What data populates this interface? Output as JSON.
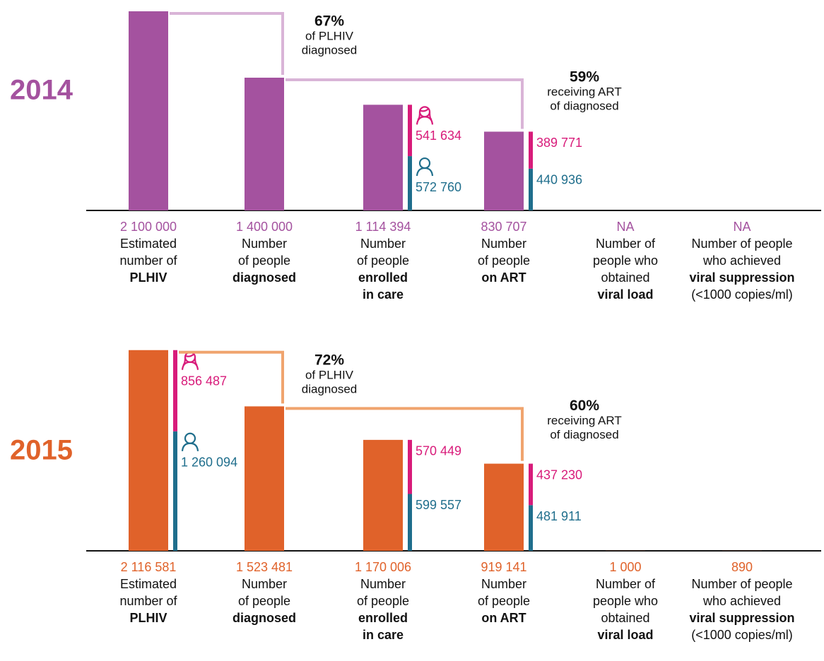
{
  "chart_data": [
    {
      "type": "bar",
      "title": "2014",
      "color": "#a4529f",
      "annotation_color": "#d9b4d7",
      "ylim": [
        0,
        2100000
      ],
      "categories": [
        {
          "lines": [
            "Estimated",
            "number of",
            "PLHIV"
          ],
          "bold": [
            2
          ]
        },
        {
          "lines": [
            "Number",
            "of people",
            "diagnosed"
          ],
          "bold": [
            2
          ]
        },
        {
          "lines": [
            "Number",
            "of people",
            "enrolled",
            "in care"
          ],
          "bold": [
            2,
            3
          ]
        },
        {
          "lines": [
            "Number",
            "of people",
            "on ART"
          ],
          "bold": [
            2
          ]
        },
        {
          "lines": [
            "Number of",
            "people who",
            "obtained",
            "viral load"
          ],
          "bold": [
            3
          ]
        },
        {
          "lines": [
            "Number of people",
            "who achieved",
            "viral suppression",
            "(<1000 copies/ml)"
          ],
          "bold": [
            2
          ]
        }
      ],
      "values": [
        2100000,
        1400000,
        1114394,
        830707,
        null,
        null
      ],
      "value_labels": [
        "2 100 000",
        "1 400 000",
        "1 114 394",
        "830 707",
        "NA",
        "NA"
      ],
      "series": [
        {
          "color": "#d81b7a",
          "values": [
            null,
            null,
            541634,
            389771,
            null,
            null
          ],
          "value_labels": [
            null,
            null,
            "541 634",
            "389 771",
            null,
            null
          ]
        },
        {
          "color": "#1f6e8c",
          "values": [
            null,
            null,
            572760,
            440936,
            null,
            null
          ],
          "value_labels": [
            null,
            null,
            "572 760",
            "440 936",
            null,
            null
          ]
        }
      ],
      "annotations": [
        {
          "label": "67%",
          "lines": [
            "of PLHIV",
            "diagnosed"
          ]
        },
        {
          "label": "59%",
          "lines": [
            "receiving ART",
            "of diagnosed"
          ]
        }
      ]
    },
    {
      "type": "bar",
      "title": "2015",
      "color": "#e0622a",
      "annotation_color": "#f0a46e",
      "ylim": [
        0,
        2100000
      ],
      "categories": [
        {
          "lines": [
            "Estimated",
            "number of",
            "PLHIV"
          ],
          "bold": [
            2
          ]
        },
        {
          "lines": [
            "Number",
            "of people",
            "diagnosed"
          ],
          "bold": [
            2
          ]
        },
        {
          "lines": [
            "Number",
            "of people",
            "enrolled",
            "in care"
          ],
          "bold": [
            2,
            3
          ]
        },
        {
          "lines": [
            "Number",
            "of people",
            "on ART"
          ],
          "bold": [
            2
          ]
        },
        {
          "lines": [
            "Number of",
            "people who",
            "obtained",
            "viral load"
          ],
          "bold": [
            3
          ]
        },
        {
          "lines": [
            "Number of people",
            "who achieved",
            "viral suppression",
            "(<1000 copies/ml)"
          ],
          "bold": [
            2
          ]
        }
      ],
      "values": [
        2116581,
        1523481,
        1170006,
        919141,
        1000,
        890
      ],
      "value_labels": [
        "2 116 581",
        "1 523 481",
        "1 170 006",
        "919 141",
        "1 000",
        "890"
      ],
      "series": [
        {
          "color": "#d81b7a",
          "values": [
            856487,
            null,
            570449,
            437230,
            null,
            null
          ],
          "value_labels": [
            "856 487",
            null,
            "570 449",
            "437 230",
            null,
            null
          ]
        },
        {
          "color": "#1f6e8c",
          "values": [
            1260094,
            null,
            599557,
            481911,
            null,
            null
          ],
          "value_labels": [
            "1 260 094",
            null,
            "599 557",
            "481 911",
            null,
            null
          ]
        }
      ],
      "annotations": [
        {
          "label": "72%",
          "lines": [
            "of PLHIV",
            "diagnosed"
          ]
        },
        {
          "label": "60%",
          "lines": [
            "receiving ART",
            "of diagnosed"
          ]
        }
      ]
    }
  ]
}
